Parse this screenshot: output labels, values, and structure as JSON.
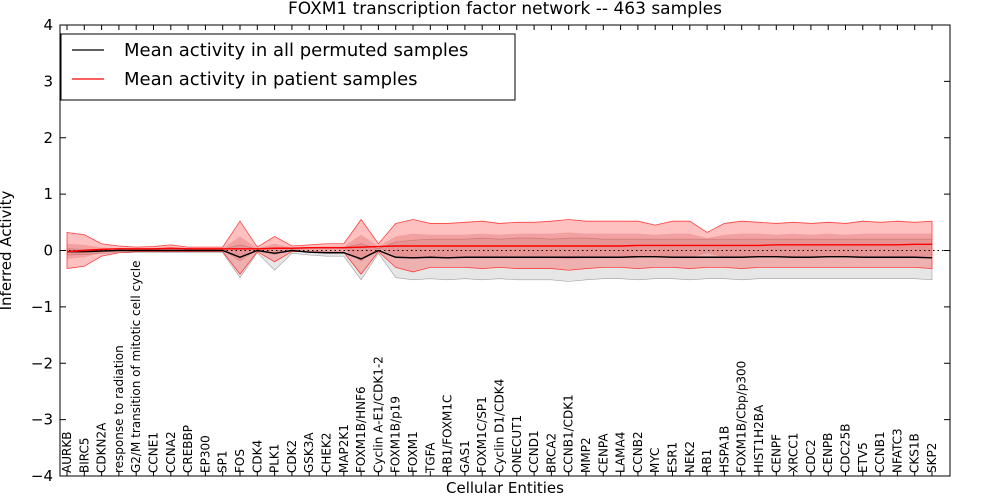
{
  "chart_data": {
    "type": "line",
    "title": "FOXM1 transcription factor network -- 463 samples",
    "xlabel": "Cellular Entities",
    "ylabel": "Inferred Activity",
    "ylim": [
      -4,
      4
    ],
    "yticks": [
      -4,
      -3,
      -2,
      -1,
      0,
      1,
      2,
      3,
      4
    ],
    "legend_position": "top-left",
    "categories": [
      "AURKB",
      "BIRC5",
      "CDKN2A",
      "response to radiation",
      "G2/M transition of mitotic cell cycle",
      "CCNE1",
      "CCNA2",
      "CREBBP",
      "EP300",
      "SP1",
      "FOS",
      "CDK4",
      "PLK1",
      "CDK2",
      "GSK3A",
      "CHEK2",
      "MAP2K1",
      "FOXM1B/HNF6",
      "Cyclin A-E1/CDK1-2",
      "FOXM1B/p19",
      "FOXM1",
      "TGFA",
      "RB1/FOXM1C",
      "GAS1",
      "FOXM1C/SP1",
      "Cyclin D1/CDK4",
      "ONECUT1",
      "CCND1",
      "BRCA2",
      "CCNB1/CDK1",
      "MMP2",
      "CENPA",
      "LAMA4",
      "CCNB2",
      "MYC",
      "ESR1",
      "NEK2",
      "RB1",
      "HSPA1B",
      "FOXM1B/Cbp/p300",
      "HIST1H2BA",
      "CENPF",
      "XRCC1",
      "CDC2",
      "CENPB",
      "CDC25B",
      "ETV5",
      "CCNB1",
      "NFATC3",
      "CKS1B",
      "SKP2"
    ],
    "series": [
      {
        "name": "Mean activity in all permuted samples",
        "color": "#000000",
        "values": [
          -0.02,
          -0.02,
          -0.01,
          0.0,
          0.0,
          0.0,
          0.0,
          0.0,
          0.0,
          0.0,
          -0.12,
          0.0,
          -0.05,
          0.0,
          -0.03,
          -0.04,
          -0.04,
          -0.15,
          0.0,
          -0.12,
          -0.13,
          -0.12,
          -0.13,
          -0.12,
          -0.12,
          -0.12,
          -0.12,
          -0.12,
          -0.12,
          -0.12,
          -0.12,
          -0.12,
          -0.12,
          -0.11,
          -0.11,
          -0.12,
          -0.12,
          -0.12,
          -0.12,
          -0.12,
          -0.11,
          -0.11,
          -0.12,
          -0.12,
          -0.11,
          -0.11,
          -0.12,
          -0.12,
          -0.12,
          -0.12,
          -0.13
        ],
        "band_upper": [
          0.03,
          0.02,
          0.02,
          0.02,
          0.02,
          0.02,
          0.03,
          0.02,
          0.02,
          0.02,
          0.1,
          0.02,
          0.05,
          0.03,
          0.04,
          0.05,
          0.05,
          0.12,
          0.03,
          0.15,
          0.18,
          0.2,
          0.2,
          0.2,
          0.22,
          0.2,
          0.22,
          0.22,
          0.2,
          0.22,
          0.22,
          0.2,
          0.2,
          0.2,
          0.2,
          0.2,
          0.2,
          0.2,
          0.2,
          0.2,
          0.2,
          0.2,
          0.2,
          0.2,
          0.2,
          0.2,
          0.2,
          0.2,
          0.2,
          0.2,
          0.2
        ],
        "band_lower": [
          -0.08,
          -0.07,
          -0.05,
          -0.04,
          -0.04,
          -0.04,
          -0.04,
          -0.04,
          -0.04,
          -0.04,
          -0.48,
          -0.04,
          -0.35,
          -0.05,
          -0.08,
          -0.1,
          -0.1,
          -0.52,
          -0.05,
          -0.48,
          -0.52,
          -0.5,
          -0.52,
          -0.5,
          -0.52,
          -0.5,
          -0.52,
          -0.52,
          -0.52,
          -0.55,
          -0.52,
          -0.5,
          -0.5,
          -0.52,
          -0.5,
          -0.5,
          -0.52,
          -0.5,
          -0.5,
          -0.52,
          -0.5,
          -0.5,
          -0.5,
          -0.5,
          -0.5,
          -0.5,
          -0.5,
          -0.5,
          -0.5,
          -0.5,
          -0.52
        ]
      },
      {
        "name": "Mean activity in patient samples",
        "color": "#ff0000",
        "values": [
          -0.02,
          0.0,
          0.02,
          0.03,
          0.03,
          0.03,
          0.04,
          0.03,
          0.03,
          0.03,
          0.03,
          0.03,
          0.04,
          0.04,
          0.05,
          0.05,
          0.05,
          0.06,
          0.07,
          0.08,
          0.08,
          0.08,
          0.08,
          0.08,
          0.08,
          0.08,
          0.08,
          0.08,
          0.08,
          0.08,
          0.08,
          0.08,
          0.08,
          0.09,
          0.09,
          0.09,
          0.09,
          0.09,
          0.09,
          0.09,
          0.09,
          0.1,
          0.1,
          0.1,
          0.1,
          0.1,
          0.1,
          0.1,
          0.1,
          0.11,
          0.11
        ],
        "band_upper": [
          0.32,
          0.28,
          0.12,
          0.08,
          0.06,
          0.07,
          0.1,
          0.06,
          0.06,
          0.06,
          0.52,
          0.06,
          0.25,
          0.08,
          0.1,
          0.12,
          0.12,
          0.55,
          0.12,
          0.48,
          0.55,
          0.48,
          0.48,
          0.5,
          0.52,
          0.48,
          0.5,
          0.5,
          0.52,
          0.55,
          0.52,
          0.52,
          0.52,
          0.52,
          0.45,
          0.52,
          0.52,
          0.32,
          0.48,
          0.52,
          0.5,
          0.48,
          0.5,
          0.48,
          0.5,
          0.48,
          0.52,
          0.5,
          0.52,
          0.5,
          0.52
        ],
        "band_lower": [
          -0.32,
          -0.28,
          -0.1,
          -0.04,
          -0.02,
          -0.02,
          -0.02,
          -0.02,
          -0.02,
          -0.02,
          -0.42,
          -0.02,
          -0.2,
          -0.02,
          -0.02,
          -0.03,
          -0.03,
          -0.42,
          -0.02,
          -0.3,
          -0.38,
          -0.3,
          -0.3,
          -0.3,
          -0.32,
          -0.3,
          -0.32,
          -0.32,
          -0.32,
          -0.35,
          -0.32,
          -0.3,
          -0.3,
          -0.32,
          -0.3,
          -0.3,
          -0.32,
          -0.3,
          -0.3,
          -0.32,
          -0.3,
          -0.3,
          -0.3,
          -0.3,
          -0.3,
          -0.3,
          -0.3,
          -0.3,
          -0.3,
          -0.3,
          -0.32
        ],
        "inner_upper": [
          0.12,
          0.1,
          0.05,
          0.04,
          0.04,
          0.04,
          0.05,
          0.04,
          0.04,
          0.04,
          0.25,
          0.04,
          0.12,
          0.05,
          0.06,
          0.07,
          0.07,
          0.28,
          0.07,
          0.25,
          0.3,
          0.28,
          0.28,
          0.28,
          0.3,
          0.28,
          0.3,
          0.3,
          0.3,
          0.32,
          0.3,
          0.3,
          0.3,
          0.3,
          0.28,
          0.3,
          0.3,
          0.22,
          0.28,
          0.3,
          0.3,
          0.28,
          0.3,
          0.28,
          0.3,
          0.28,
          0.3,
          0.3,
          0.3,
          0.3,
          0.3
        ],
        "inner_lower": [
          -0.15,
          -0.12,
          -0.04,
          0.0,
          0.01,
          0.01,
          0.01,
          0.01,
          0.01,
          0.01,
          -0.2,
          0.01,
          -0.08,
          0.01,
          0.02,
          0.02,
          0.02,
          -0.2,
          0.03,
          -0.1,
          -0.15,
          -0.12,
          -0.12,
          -0.12,
          -0.13,
          -0.12,
          -0.13,
          -0.13,
          -0.13,
          -0.15,
          -0.13,
          -0.12,
          -0.12,
          -0.13,
          -0.12,
          -0.12,
          -0.13,
          -0.05,
          -0.12,
          -0.13,
          -0.12,
          -0.12,
          -0.12,
          -0.12,
          -0.12,
          -0.12,
          -0.12,
          -0.12,
          -0.12,
          -0.12,
          -0.13
        ]
      }
    ],
    "reference_line": {
      "value": 0,
      "style": "dotted"
    }
  }
}
